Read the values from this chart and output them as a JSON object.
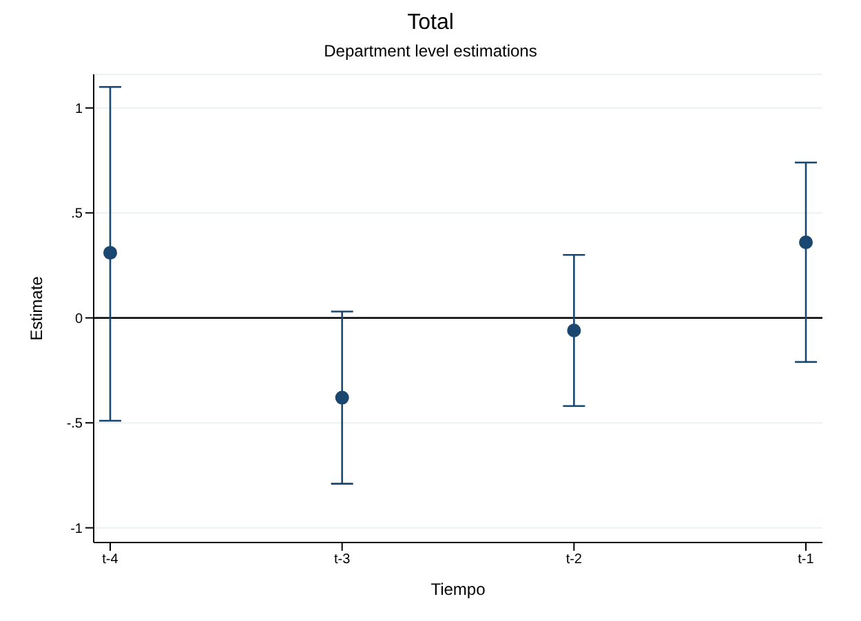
{
  "chart_data": {
    "type": "scatter",
    "title": "Total",
    "subtitle": "Department level estimations",
    "xlabel": "Tiempo",
    "ylabel": "Estimate",
    "categories": [
      "t-4",
      "t-3",
      "t-2",
      "t-1"
    ],
    "series": [
      {
        "color": "#1a476f",
        "values": [
          0.31,
          -0.38,
          -0.06,
          0.36
        ],
        "errors": [
          [
            -0.49,
            1.1
          ],
          [
            -0.79,
            0.03
          ],
          [
            -0.42,
            0.3
          ],
          [
            -0.21,
            0.74
          ]
        ]
      }
    ],
    "ylim": [
      -1.07,
      1.16
    ],
    "yticks": [
      {
        "value": -1,
        "label": "-1"
      },
      {
        "value": -0.5,
        "label": "-.5"
      },
      0,
      {
        "value": 0.5,
        "label": ".5"
      },
      1
    ],
    "ref_lines": [
      {
        "axis": "y",
        "value": 0,
        "color": "#000000"
      }
    ],
    "grid": "y",
    "marker": "circle"
  }
}
